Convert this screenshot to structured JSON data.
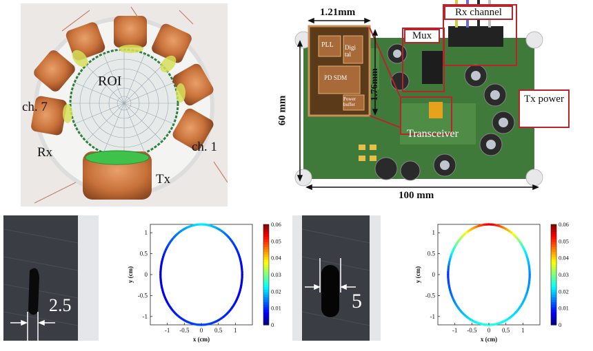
{
  "coil_photo": {
    "roi": "ROI",
    "ch7": "ch. 7",
    "ch1": "ch. 1",
    "rx": "Rx",
    "tx": "Tx"
  },
  "board_photo": {
    "chip_width": "1.21mm",
    "chip_height": "1.76mm",
    "board_height": "60 mm",
    "board_width": "100 mm",
    "chip_pll": "PLL",
    "chip_digital": "Digi tal",
    "chip_pd": "PD SDM",
    "chip_power": "Power buffer",
    "mux": "Mux",
    "rx_channel": "Rx channel",
    "tx_power": "Tx power",
    "transceiver": "Transceiver"
  },
  "defect_photos": {
    "small_size": "2.5",
    "large_size": "5"
  },
  "colors": {
    "annotation_red": "#b8232c",
    "pcb_green": "#3f7a3a",
    "copper": "#c8713a"
  },
  "chart_data": [
    {
      "type": "heatmap",
      "title": "",
      "xlabel": "x (cm)",
      "ylabel": "y (cm)",
      "xlim": [
        -1.5,
        1.5
      ],
      "ylim": [
        -1.2,
        1.2
      ],
      "x_ticks": [
        "-1",
        "-0.5",
        "0",
        "0.5",
        "1"
      ],
      "y_ticks": [
        "1",
        "0.5",
        "0",
        "-0.5",
        "-1"
      ],
      "colorbar_ticks": [
        "0.06",
        "0.05",
        "0.04",
        "0.03",
        "0.02",
        "0.01",
        "0"
      ],
      "clim": [
        0,
        0.06
      ],
      "ring_values": [
        {
          "angle_deg": 90,
          "value": 0.022
        },
        {
          "angle_deg": 45,
          "value": 0.012
        },
        {
          "angle_deg": 0,
          "value": 0.006
        },
        {
          "angle_deg": -90,
          "value": 0.012
        },
        {
          "angle_deg": 180,
          "value": 0.005
        }
      ]
    },
    {
      "type": "heatmap",
      "title": "",
      "xlabel": "x (cm)",
      "ylabel": "y (cm)",
      "xlim": [
        -1.5,
        1.5
      ],
      "ylim": [
        -1.2,
        1.2
      ],
      "x_ticks": [
        "-1",
        "-0.5",
        "0",
        "0.5",
        "1"
      ],
      "y_ticks": [
        "1",
        "0.5",
        "0",
        "-0.5",
        "-1"
      ],
      "colorbar_ticks": [
        "0.06",
        "0.05",
        "0.04",
        "0.03",
        "0.02",
        "0.01",
        "0"
      ],
      "clim": [
        0,
        0.06
      ],
      "ring_values": [
        {
          "angle_deg": 90,
          "value": 0.055
        },
        {
          "angle_deg": 60,
          "value": 0.04
        },
        {
          "angle_deg": 30,
          "value": 0.022
        },
        {
          "angle_deg": 0,
          "value": 0.015
        },
        {
          "angle_deg": -90,
          "value": 0.025
        },
        {
          "angle_deg": 180,
          "value": 0.01
        }
      ]
    }
  ]
}
